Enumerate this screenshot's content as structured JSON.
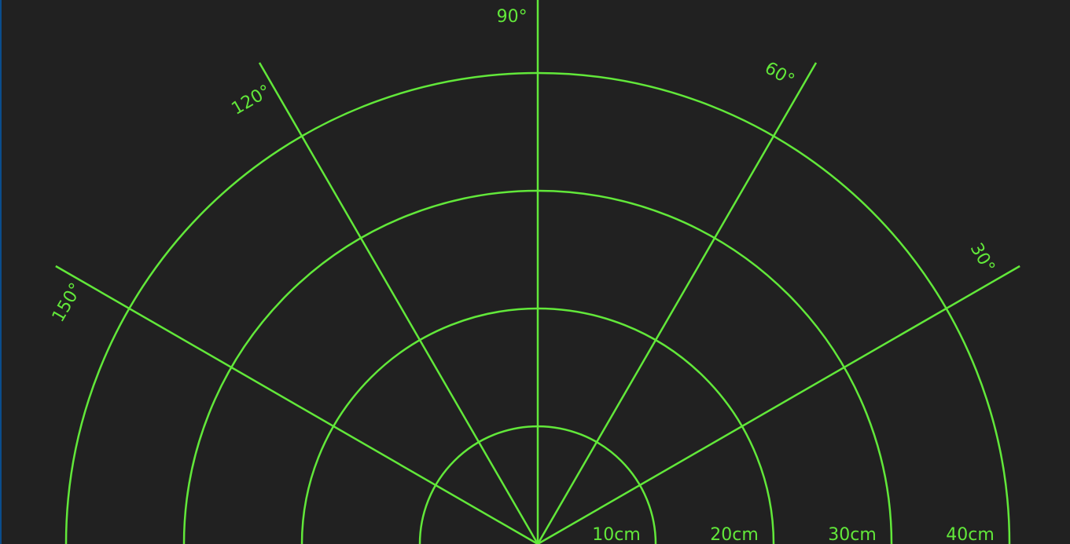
{
  "radar": {
    "line_color": "#62e83a",
    "background_color": "#212121",
    "angle_labels": [
      {
        "angle": 30,
        "text": "30°"
      },
      {
        "angle": 60,
        "text": "60°"
      },
      {
        "angle": 90,
        "text": "90°"
      },
      {
        "angle": 120,
        "text": "120°"
      },
      {
        "angle": 150,
        "text": "150°"
      }
    ],
    "distance_labels": [
      {
        "distance": 10,
        "text": "10cm"
      },
      {
        "distance": 20,
        "text": "20cm"
      },
      {
        "distance": 30,
        "text": "30cm"
      },
      {
        "distance": 40,
        "text": "40cm"
      }
    ]
  }
}
